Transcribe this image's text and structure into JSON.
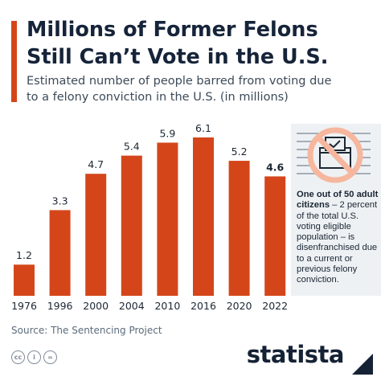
{
  "colors": {
    "accent": "#d4461a",
    "bar": "#d4461a",
    "title": "#16243a",
    "note_bg": "#eef1f4",
    "icon_ring": "#f6b79e"
  },
  "header": {
    "title_line1": "Millions of Former Felons",
    "title_line2": "Still Can’t Vote in the U.S.",
    "subtitle_line1": "Estimated number of people barred from voting due",
    "subtitle_line2": "to a felony conviction in the U.S. (in millions)"
  },
  "chart_data": {
    "type": "bar",
    "title": "Millions of Former Felons Still Can’t Vote in the U.S.",
    "subtitle": "Estimated number of people barred from voting due to a felony conviction in the U.S. (in millions)",
    "categories": [
      "1976",
      "1996",
      "2000",
      "2004",
      "2010",
      "2016",
      "2020",
      "2022"
    ],
    "values": [
      1.2,
      3.3,
      4.7,
      5.4,
      5.9,
      6.1,
      5.2,
      4.6
    ],
    "value_labels": [
      "1.2",
      "3.3",
      "4.7",
      "5.4",
      "5.9",
      "6.1",
      "5.2",
      "4.6"
    ],
    "highlighted_label": "4.6",
    "xlabel": "",
    "ylabel": "",
    "ylim": [
      0,
      6.1
    ],
    "grid": false,
    "legend": "none"
  },
  "note": {
    "icon": "ballot-box-prohibited-icon",
    "bold": "One out of 50 adult citizens",
    "rest": " – 2 percent of the total U.S. voting eligible population – is disenfranchised due to a current or previous felony conviction."
  },
  "footer": {
    "source": "Source: The Sentencing Project",
    "license_icons": [
      "cc",
      "i",
      "="
    ],
    "brand": "statista"
  }
}
